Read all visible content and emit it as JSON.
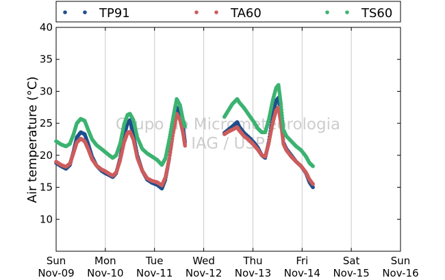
{
  "chart_data": {
    "type": "scatter",
    "ylabel": "Air temperature (°C)",
    "xlabel": "",
    "ylim": [
      5,
      40
    ],
    "xlim": [
      0,
      7
    ],
    "y_ticks": [
      10,
      15,
      20,
      25,
      30,
      35,
      40
    ],
    "x_ticks": [
      {
        "value": 0,
        "day": "Sun",
        "date": "Nov-09"
      },
      {
        "value": 1,
        "day": "Mon",
        "date": "Nov-10"
      },
      {
        "value": 2,
        "day": "Tue",
        "date": "Nov-11"
      },
      {
        "value": 3,
        "day": "Wed",
        "date": "Nov-12"
      },
      {
        "value": 4,
        "day": "Thu",
        "date": "Nov-13"
      },
      {
        "value": 5,
        "day": "Fri",
        "date": "Nov-14"
      },
      {
        "value": 6,
        "day": "Sat",
        "date": "Nov-15"
      },
      {
        "value": 7,
        "day": "Sun",
        "date": "Nov-16"
      }
    ],
    "grid": "vertical",
    "legend_position": "top",
    "watermark": [
      "Grupo de Micrometeorologia",
      "IAG / USP"
    ],
    "series": [
      {
        "name": "TP91",
        "color": "#1f4e8c",
        "segments": [
          [
            [
              0,
              18.8
            ],
            [
              0.1,
              18.3
            ],
            [
              0.2,
              17.9
            ],
            [
              0.28,
              18.5
            ],
            [
              0.35,
              20.5
            ],
            [
              0.42,
              22.8
            ],
            [
              0.5,
              23.6
            ],
            [
              0.58,
              23.3
            ],
            [
              0.65,
              21.8
            ],
            [
              0.73,
              19.8
            ],
            [
              0.82,
              18.4
            ],
            [
              0.92,
              17.6
            ],
            [
              1.0,
              17.2
            ],
            [
              1.08,
              16.9
            ],
            [
              1.15,
              16.6
            ],
            [
              1.22,
              17.2
            ],
            [
              1.3,
              19.5
            ],
            [
              1.38,
              23.0
            ],
            [
              1.45,
              25.0
            ],
            [
              1.5,
              25.5
            ],
            [
              1.57,
              23.2
            ],
            [
              1.65,
              20.0
            ],
            [
              1.75,
              17.6
            ],
            [
              1.85,
              16.2
            ],
            [
              1.95,
              15.7
            ],
            [
              2.05,
              15.4
            ],
            [
              2.15,
              14.8
            ],
            [
              2.22,
              16.2
            ],
            [
              2.3,
              19.5
            ],
            [
              2.38,
              24.0
            ],
            [
              2.45,
              27.5
            ],
            [
              2.52,
              26.5
            ],
            [
              2.58,
              24.5
            ],
            [
              2.62,
              22.0
            ]
          ],
          [
            [
              3.42,
              23.5
            ],
            [
              3.5,
              24.0
            ],
            [
              3.58,
              24.5
            ],
            [
              3.68,
              25.2
            ],
            [
              3.72,
              24.5
            ],
            [
              3.82,
              23.5
            ],
            [
              3.92,
              22.8
            ],
            [
              4.02,
              22.0
            ],
            [
              4.1,
              21.2
            ],
            [
              4.18,
              20.0
            ],
            [
              4.25,
              19.6
            ],
            [
              4.32,
              22.0
            ],
            [
              4.4,
              26.0
            ],
            [
              4.47,
              28.5
            ],
            [
              4.52,
              29.0
            ],
            [
              4.57,
              26.0
            ],
            [
              4.62,
              22.0
            ],
            [
              4.68,
              21.0
            ],
            [
              4.78,
              20.0
            ],
            [
              4.88,
              19.0
            ],
            [
              4.98,
              18.3
            ],
            [
              5.08,
              17.2
            ],
            [
              5.15,
              15.8
            ],
            [
              5.22,
              15.0
            ]
          ]
        ]
      },
      {
        "name": "TA60",
        "color": "#cd5c5c",
        "segments": [
          [
            [
              0,
              19.0
            ],
            [
              0.1,
              18.5
            ],
            [
              0.2,
              18.2
            ],
            [
              0.28,
              18.7
            ],
            [
              0.35,
              20.3
            ],
            [
              0.42,
              22.0
            ],
            [
              0.5,
              22.6
            ],
            [
              0.58,
              22.2
            ],
            [
              0.65,
              21.0
            ],
            [
              0.73,
              19.4
            ],
            [
              0.82,
              18.4
            ],
            [
              0.92,
              17.8
            ],
            [
              1.0,
              17.5
            ],
            [
              1.08,
              17.1
            ],
            [
              1.15,
              16.8
            ],
            [
              1.22,
              17.3
            ],
            [
              1.3,
              19.2
            ],
            [
              1.38,
              22.0
            ],
            [
              1.45,
              23.5
            ],
            [
              1.5,
              23.7
            ],
            [
              1.57,
              22.5
            ],
            [
              1.65,
              19.6
            ],
            [
              1.75,
              17.6
            ],
            [
              1.85,
              16.4
            ],
            [
              1.95,
              16.0
            ],
            [
              2.05,
              15.8
            ],
            [
              2.15,
              15.3
            ],
            [
              2.22,
              16.5
            ],
            [
              2.3,
              19.5
            ],
            [
              2.38,
              23.5
            ],
            [
              2.45,
              26.5
            ],
            [
              2.52,
              25.5
            ],
            [
              2.58,
              23.5
            ],
            [
              2.62,
              21.5
            ]
          ],
          [
            [
              3.42,
              23.3
            ],
            [
              3.5,
              23.7
            ],
            [
              3.58,
              24.0
            ],
            [
              3.68,
              24.4
            ],
            [
              3.72,
              23.9
            ],
            [
              3.82,
              23.0
            ],
            [
              3.92,
              22.4
            ],
            [
              4.02,
              21.6
            ],
            [
              4.1,
              20.9
            ],
            [
              4.18,
              20.0
            ],
            [
              4.25,
              19.8
            ],
            [
              4.32,
              21.8
            ],
            [
              4.4,
              25.0
            ],
            [
              4.47,
              27.0
            ],
            [
              4.52,
              27.5
            ],
            [
              4.57,
              25.0
            ],
            [
              4.62,
              21.8
            ],
            [
              4.68,
              20.8
            ],
            [
              4.78,
              19.8
            ],
            [
              4.88,
              19.0
            ],
            [
              4.98,
              18.3
            ],
            [
              5.08,
              17.3
            ],
            [
              5.15,
              16.2
            ],
            [
              5.22,
              15.5
            ]
          ]
        ]
      },
      {
        "name": "TS60",
        "color": "#3cb371",
        "segments": [
          [
            [
              0,
              22.2
            ],
            [
              0.1,
              21.7
            ],
            [
              0.2,
              21.4
            ],
            [
              0.28,
              21.8
            ],
            [
              0.35,
              23.2
            ],
            [
              0.42,
              25.0
            ],
            [
              0.5,
              25.7
            ],
            [
              0.58,
              25.4
            ],
            [
              0.65,
              24.0
            ],
            [
              0.73,
              22.5
            ],
            [
              0.82,
              21.6
            ],
            [
              0.92,
              21.0
            ],
            [
              1.0,
              20.5
            ],
            [
              1.08,
              20.0
            ],
            [
              1.15,
              19.6
            ],
            [
              1.22,
              20.0
            ],
            [
              1.3,
              21.8
            ],
            [
              1.38,
              24.8
            ],
            [
              1.45,
              26.3
            ],
            [
              1.5,
              26.5
            ],
            [
              1.57,
              25.5
            ],
            [
              1.65,
              22.8
            ],
            [
              1.75,
              21.0
            ],
            [
              1.85,
              20.3
            ],
            [
              1.95,
              19.8
            ],
            [
              2.05,
              19.3
            ],
            [
              2.15,
              18.5
            ],
            [
              2.22,
              19.5
            ],
            [
              2.3,
              22.5
            ],
            [
              2.38,
              26.0
            ],
            [
              2.45,
              28.8
            ],
            [
              2.52,
              27.8
            ],
            [
              2.58,
              25.5
            ],
            [
              2.62,
              24.5
            ]
          ],
          [
            [
              3.42,
              26.0
            ],
            [
              3.5,
              27.0
            ],
            [
              3.58,
              28.0
            ],
            [
              3.68,
              28.8
            ],
            [
              3.72,
              28.3
            ],
            [
              3.82,
              27.4
            ],
            [
              3.92,
              26.3
            ],
            [
              4.02,
              25.2
            ],
            [
              4.1,
              24.2
            ],
            [
              4.18,
              23.6
            ],
            [
              4.25,
              23.6
            ],
            [
              4.32,
              25.5
            ],
            [
              4.4,
              28.5
            ],
            [
              4.47,
              30.5
            ],
            [
              4.52,
              31.0
            ],
            [
              4.57,
              28.0
            ],
            [
              4.62,
              24.0
            ],
            [
              4.68,
              23.0
            ],
            [
              4.78,
              22.2
            ],
            [
              4.88,
              21.4
            ],
            [
              4.98,
              20.8
            ],
            [
              5.08,
              19.8
            ],
            [
              5.15,
              18.8
            ],
            [
              5.22,
              18.3
            ]
          ]
        ]
      }
    ]
  }
}
